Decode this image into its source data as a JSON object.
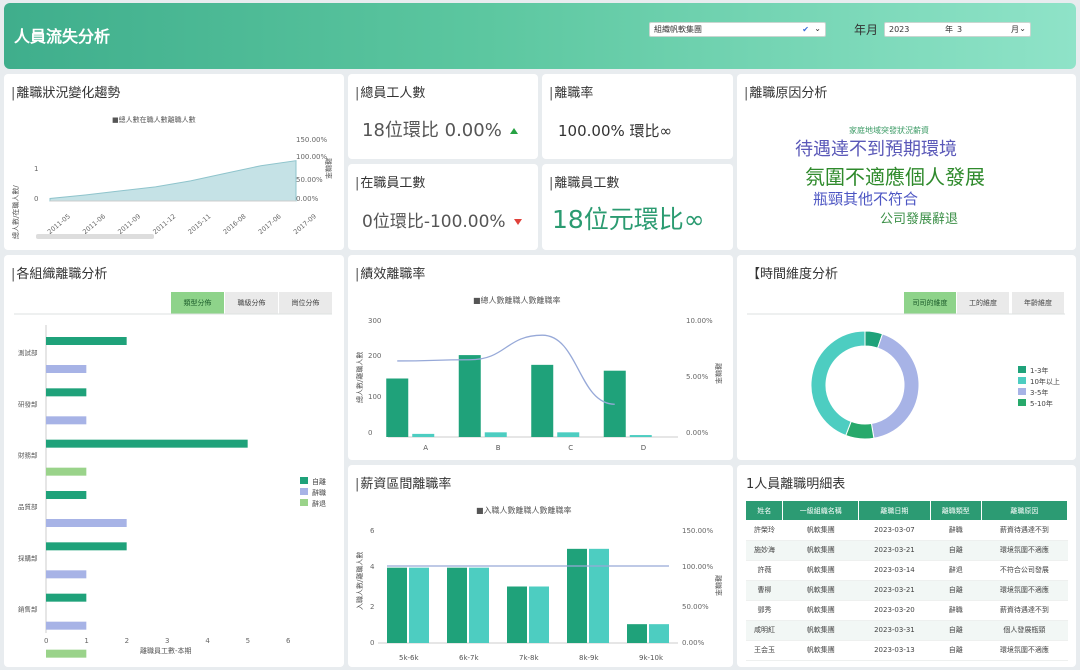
{
  "header": {
    "title": "人員流失分析",
    "org_label": "組織帆軟集團",
    "org_check": "✔",
    "year_month_label": "年月",
    "year_value": "2023",
    "year_unit": "年",
    "month_value": "3",
    "month_unit": "月"
  },
  "colors": {
    "green": "#1fa27a",
    "teal": "#4dcdc1",
    "lavender": "#a7b3e6",
    "light_green": "#9ad38a"
  },
  "trend": {
    "title": "離職狀況變化趨勢",
    "legend": "■總人數在職人數離職人數",
    "y_left": [
      "1",
      "0"
    ],
    "y_right": [
      "150.00%",
      "100.00%",
      "50.00%",
      "0.00%"
    ],
    "y_left_label": "總人數/在職人數/",
    "y_right_label": "離職率",
    "x_labels": [
      "2011-05",
      "2011-06",
      "2011-09",
      "2011-12",
      "2015-11",
      "2016-08",
      "2017-06",
      "2017-09"
    ]
  },
  "kpi": {
    "total_title": "總員工人數",
    "total_value": "18位環比 0.00%",
    "rate_title": "離職率",
    "rate_value": "100.00% 環比∞",
    "active_title": "在職員工數",
    "active_value": "0位環比-100.00%",
    "leave_title": "離職員工數",
    "leave_value": "18位元環比∞"
  },
  "reasons": {
    "title": "離職原因分析",
    "words": [
      "家庭地域突發狀況薪資",
      "待遇達不到預期環境",
      "氛圍不適應個人發展",
      "瓶頸其他不符合",
      "公司發展辭退"
    ]
  },
  "org": {
    "title": "各組織離職分析",
    "tabs": [
      "類型分佈",
      "職級分佈",
      "崗位分佈"
    ],
    "categories": [
      "測試部",
      "研發部",
      "財務部",
      "品質部",
      "採購部",
      "銷售部"
    ],
    "legend": [
      "自離",
      "辭職",
      "辭退"
    ],
    "x_ticks": [
      "0",
      "1",
      "2",
      "3",
      "4",
      "5",
      "6"
    ],
    "xlabel": "離職員工數-本期"
  },
  "perf": {
    "title": "績效離職率",
    "legend": "■總人數離職人數離職率",
    "y_left": [
      "300",
      "200",
      "100",
      "0"
    ],
    "y_right": [
      "10.00%",
      "5.00%",
      "0.00%"
    ],
    "y_left_label": "總人數/離職人數",
    "y_right_label": "離職率",
    "categories": [
      "A",
      "B",
      "C",
      "D"
    ]
  },
  "timedim": {
    "title": "【時間維度分析",
    "tabs": [
      "司司的維度",
      "工的維度",
      "年齡維度"
    ],
    "legend": [
      "1-3年",
      "10年以上",
      "3-5年",
      "5-10年"
    ]
  },
  "salary": {
    "title": "薪資區間離職率",
    "legend": "■入職人數離職人數離職率",
    "y_left": [
      "6",
      "4",
      "2",
      "0"
    ],
    "y_right": [
      "150.00%",
      "100.00%",
      "50.00%",
      "0.00%"
    ],
    "y_left_label": "入職人數/離職人數",
    "y_right_label": "離職率",
    "categories": [
      "5k-6k",
      "6k-7k",
      "7k-8k",
      "8k-9k",
      "9k-10k"
    ]
  },
  "detail": {
    "title": "1人員離職明細表",
    "headers": [
      "姓名",
      "一級組織名稱",
      "離職日期",
      "離職類型",
      "離職原因"
    ],
    "rows": [
      [
        "許榮玲",
        "帆軟集團",
        "2023-03-07",
        "辭職",
        "薪資待遇達不到"
      ],
      [
        "施妙海",
        "帆軟集團",
        "2023-03-21",
        "自離",
        "環境氛圍不適應"
      ],
      [
        "許薇",
        "帆軟集團",
        "2023-03-14",
        "辭退",
        "不符合公司發展"
      ],
      [
        "曹柳",
        "帆軟集團",
        "2023-03-21",
        "自離",
        "環境氛圍不適應"
      ],
      [
        "鄧秀",
        "帆軟集團",
        "2023-03-20",
        "辭職",
        "薪資待遇達不到"
      ],
      [
        "咸明紅",
        "帆軟集團",
        "2023-03-31",
        "自離",
        "個人發展瓶頸"
      ],
      [
        "王会玉",
        "帆軟集團",
        "2023-03-13",
        "自離",
        "環境氛圍不適應"
      ]
    ]
  },
  "chart_data": [
    {
      "type": "area",
      "title": "離職狀況變化趨勢",
      "categories": [
        "2011-05",
        "2011-06",
        "2011-09",
        "2011-12",
        "2015-11",
        "2016-08",
        "2017-06",
        "2017-09"
      ],
      "series": [
        {
          "name": "總人數",
          "values": [
            0.05,
            0.12,
            0.2,
            0.28,
            0.4,
            0.55,
            0.7,
            0.8
          ]
        }
      ],
      "ylim_right": [
        0,
        150
      ]
    },
    {
      "type": "bar",
      "title": "各組織離職分析",
      "categories": [
        "測試部",
        "研發部",
        "財務部",
        "品質部",
        "採購部",
        "銷售部"
      ],
      "xlabel": "離職員工數-本期",
      "xlim": [
        0,
        6
      ],
      "series": [
        {
          "name": "自離",
          "values": [
            2,
            1,
            5,
            1,
            2,
            1
          ]
        },
        {
          "name": "辭職",
          "values": [
            1,
            1,
            0,
            2,
            1,
            1
          ]
        },
        {
          "name": "辭退",
          "values": [
            0,
            0,
            1,
            0,
            0,
            1
          ]
        }
      ]
    },
    {
      "type": "bar",
      "title": "績效離職率",
      "categories": [
        "A",
        "B",
        "C",
        "D"
      ],
      "ylim": [
        0,
        300
      ],
      "series": [
        {
          "name": "總人數",
          "values": [
            150,
            210,
            185,
            170
          ]
        },
        {
          "name": "離職人數",
          "values": [
            8,
            12,
            12,
            5
          ]
        },
        {
          "name": "離職率",
          "values": [
            6.5,
            6.6,
            8.7,
            2.8
          ]
        }
      ]
    },
    {
      "type": "pie",
      "title": "時間維度分析",
      "categories": [
        "1-3年",
        "10年以上",
        "3-5年",
        "5-10年"
      ],
      "values": [
        5,
        42,
        40,
        8
      ]
    },
    {
      "type": "bar",
      "title": "薪資區間離職率",
      "categories": [
        "5k-6k",
        "6k-7k",
        "7k-8k",
        "8k-9k",
        "9k-10k"
      ],
      "ylim": [
        0,
        6
      ],
      "series": [
        {
          "name": "入職人數",
          "values": [
            4,
            4,
            3,
            5,
            1
          ]
        },
        {
          "name": "離職人數",
          "values": [
            4,
            4,
            3,
            5,
            1
          ]
        },
        {
          "name": "離職率",
          "values": [
            100,
            100,
            100,
            100,
            100
          ]
        }
      ]
    }
  ]
}
